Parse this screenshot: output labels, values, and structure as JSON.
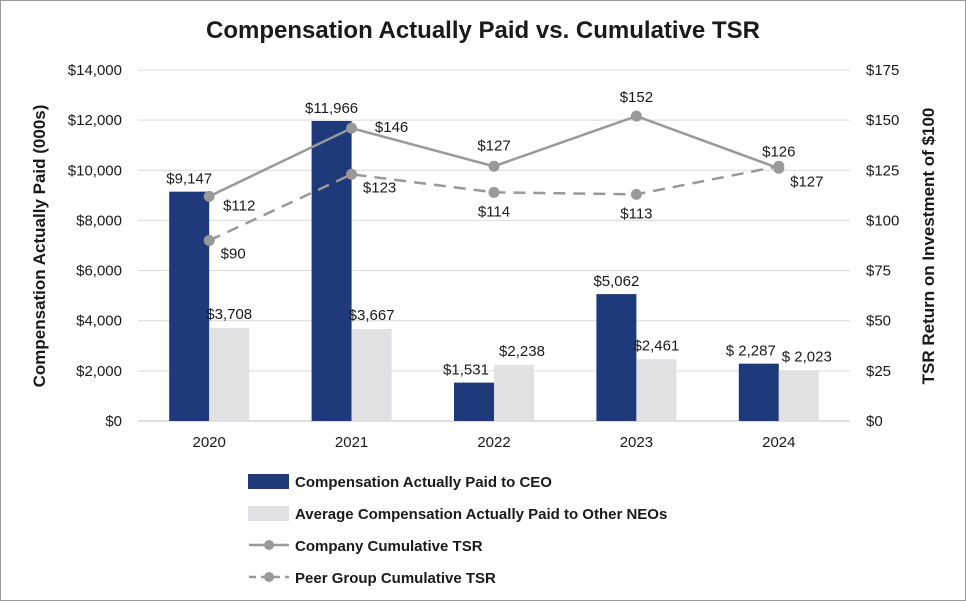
{
  "chart_data": {
    "type": "bar+line",
    "title": "Compensation Actually Paid vs. Cumulative TSR",
    "categories": [
      "2020",
      "2021",
      "2022",
      "2023",
      "2024"
    ],
    "ylabel_left": "Compensation Actually Paid (000s)",
    "ylabel_right": "TSR Return on Investment of $100",
    "ylim_left": [
      0,
      14000
    ],
    "ylim_right": [
      0,
      175
    ],
    "yticks_left": [
      "$0",
      "$2,000",
      "$4,000",
      "$6,000",
      "$8,000",
      "$10,000",
      "$12,000",
      "$14,000"
    ],
    "yticks_right": [
      "$0",
      "$25",
      "$50",
      "$75",
      "$100",
      "$125",
      "$150",
      "$175"
    ],
    "grid": true,
    "legend_position": "bottom",
    "colors": {
      "ceo_bar": "#1f3a7a",
      "neo_bar": "#e1e1e3",
      "company_line": "#999999",
      "peer_line": "#999999",
      "grid": "#d9d9d9",
      "text": "#1a1a1a"
    },
    "bar_series": [
      {
        "name": "Compensation Actually Paid to CEO",
        "values": [
          9147,
          11966,
          1531,
          5062,
          2287
        ],
        "labels": [
          "$9,147",
          "$11,966",
          "$1,531",
          "$5,062",
          "$ 2,287"
        ]
      },
      {
        "name": "Average Compensation Actually Paid to Other NEOs",
        "values": [
          3708,
          3667,
          2238,
          2461,
          2023
        ],
        "labels": [
          "$3,708",
          "$3,667",
          "$2,238",
          "$2,461",
          "$ 2,023"
        ]
      }
    ],
    "line_series": [
      {
        "name": "Company Cumulative TSR",
        "style": "solid",
        "values": [
          112,
          146,
          127,
          152,
          126
        ],
        "labels": [
          "$112",
          "$146",
          "$127",
          "$152",
          "$126"
        ]
      },
      {
        "name": "Peer Group Cumulative TSR",
        "style": "dashed",
        "values": [
          90,
          123,
          114,
          113,
          127
        ],
        "labels": [
          "$90",
          "$123",
          "$114",
          "$113",
          "$127"
        ]
      }
    ]
  }
}
